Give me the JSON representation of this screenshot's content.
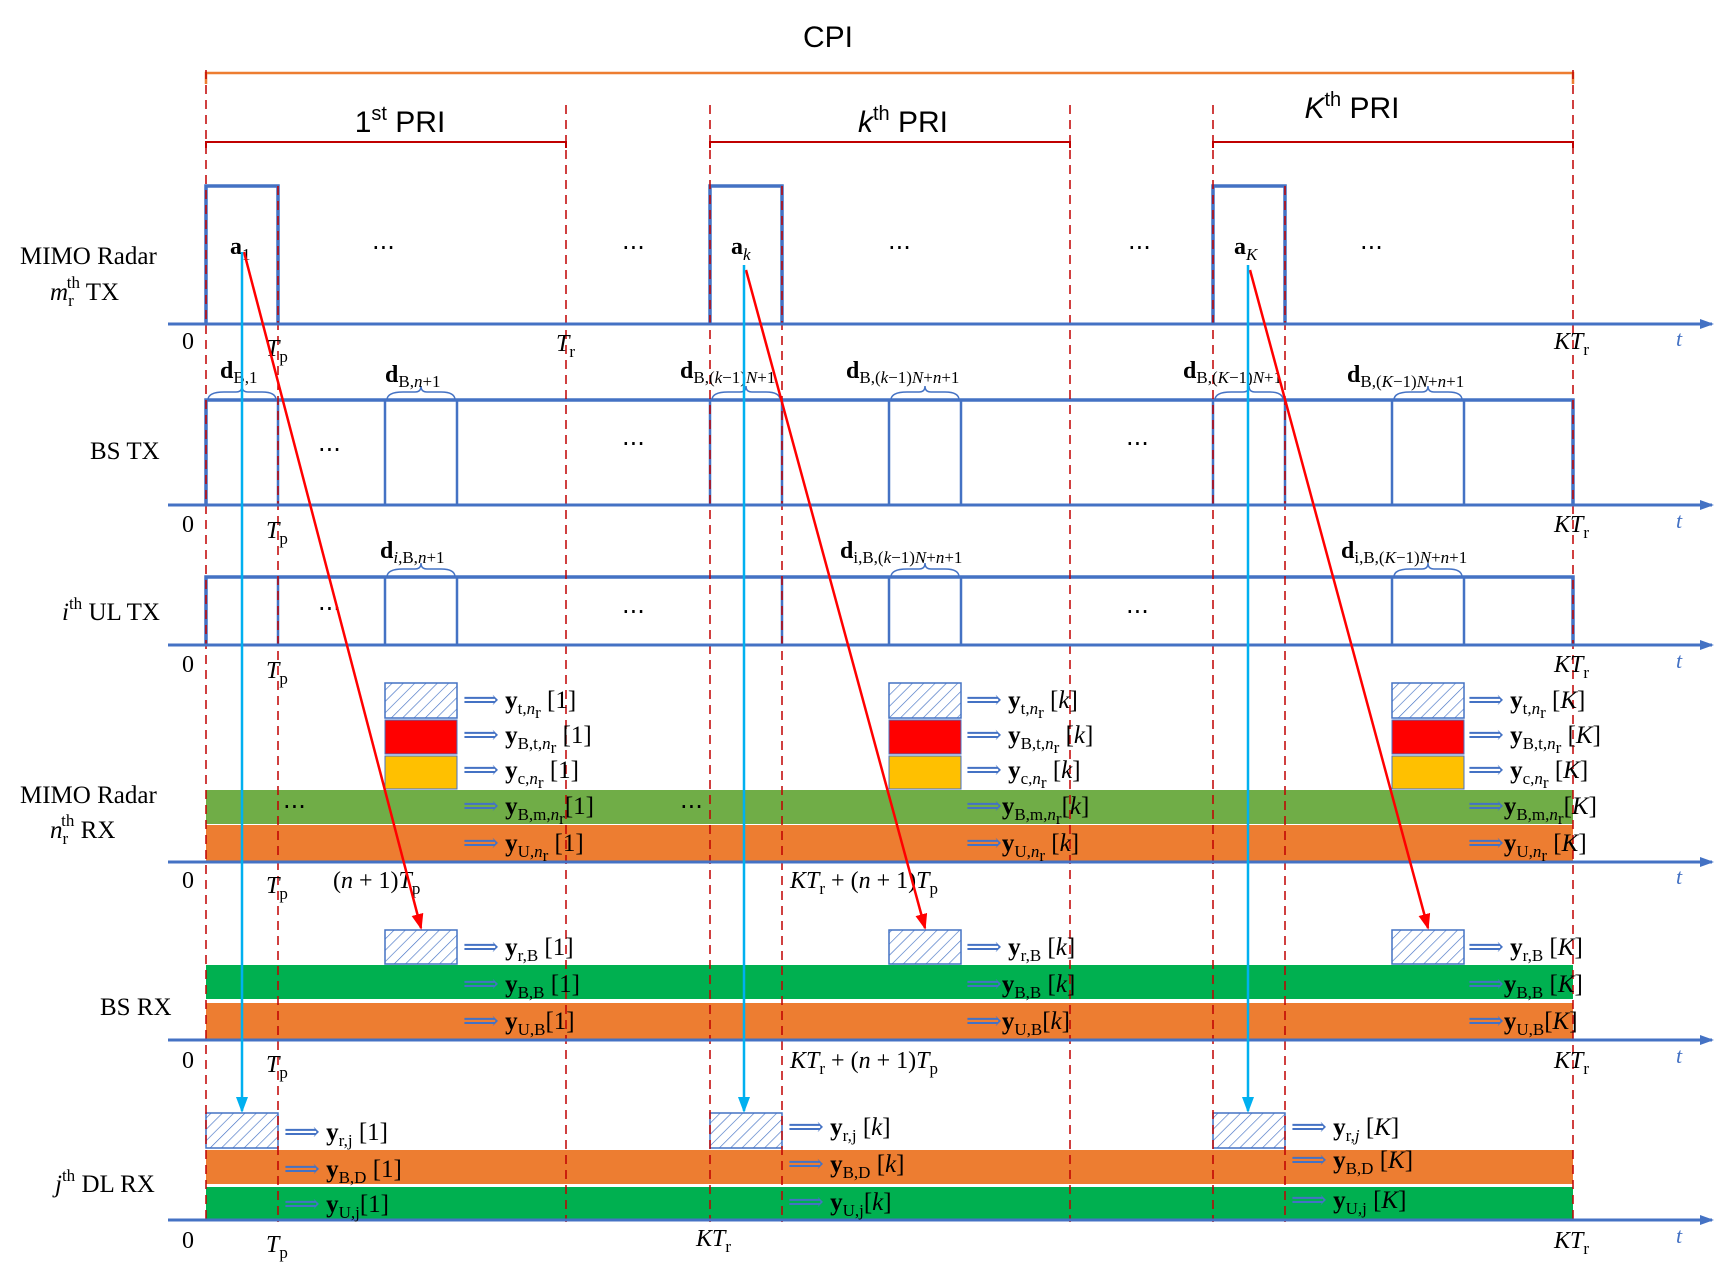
{
  "header": {
    "cpi": "CPI",
    "pri_first": "1st PRI",
    "pri_k": "kth PRI",
    "pri_K": "Kth PRI"
  },
  "rows": {
    "radar_tx": {
      "line1": "MIMO Radar",
      "line2": "mrth TX"
    },
    "bs_tx": {
      "label": "BS TX"
    },
    "ul_tx": {
      "label": "ith UL TX"
    },
    "radar_rx": {
      "line1": "MIMO Radar",
      "line2": "nrth RX"
    },
    "bs_rx": {
      "label": "BS RX"
    },
    "dl_rx": {
      "label": "jth DL RX"
    }
  },
  "axis": {
    "t": "t",
    "zero": "0",
    "tp": "Tp",
    "tr": "Tr",
    "ktr": "KTr",
    "n1tp": "(n + 1)Tp",
    "ktr_n1tp": "KTr + (n + 1)Tp"
  },
  "pulses": {
    "a1": "a1",
    "ak": "ak",
    "aK": "aK"
  },
  "bs_tx_symbols": {
    "d1": "dB,1",
    "dn1": "dB,n+1",
    "dk": "dB,(k−1)N+1",
    "dkn": "dB,(k−1)N+n+1",
    "dK": "dB,(K−1)N+1",
    "dKn": "dB,(K−1)N+n+1"
  },
  "ul_symbols": {
    "dn1": "di,B,n+1",
    "dkn": "di,B,(k−1)N+n+1",
    "dKn": "di,B,(K−1)N+n+1"
  },
  "radar_rx_signals": {
    "yt": [
      "yt,nr [1]",
      "yt,nr [k]",
      "yt,nr [K]"
    ],
    "ybt": [
      "yB,t,nr [1]",
      "yB,t,nr [k]",
      "yB,t,nr [K]"
    ],
    "yc": [
      "yc,nr [1]",
      "yc,nr [k]",
      "yc,nr [K]"
    ],
    "ybm": [
      "yB,m,nr[1]",
      "yB,m,nr[k]",
      "yB,m,nr[K]"
    ],
    "yu": [
      "yU,nr [1]",
      "yU,nr [k]",
      "yU,nr [K]"
    ]
  },
  "bs_rx_signals": {
    "yr": [
      "yr,B [1]",
      "yr,B [k]",
      "yr,B [K]"
    ],
    "ybb": [
      "yB,B [1]",
      "yB,B [k]",
      "yB,B [K]"
    ],
    "yub": [
      "yU,B [1]",
      "yU,B [k]",
      "yU,B [K]"
    ]
  },
  "dl_rx_signals": {
    "yr": [
      "yr,j [1]",
      "yr,j [k]",
      "yr,j [K]"
    ],
    "ybd": [
      "yB,D [1]",
      "yB,D [k]",
      "yB,D [K]"
    ],
    "yu": [
      "yU,j [1]",
      "yU,j [k]",
      "yU,j [K]"
    ]
  },
  "colors": {
    "axis": "#4472c4",
    "red_dash": "#c00000",
    "cpi_bracket": "#ed7d31",
    "pri_bracket": "#c00000",
    "green_light": "#70ad47",
    "green": "#00b050",
    "orange": "#ed7d31",
    "red": "#ff0000",
    "yellow": "#ffc000",
    "arrow_red": "#ff0000",
    "arrow_blue": "#00b0f0"
  }
}
